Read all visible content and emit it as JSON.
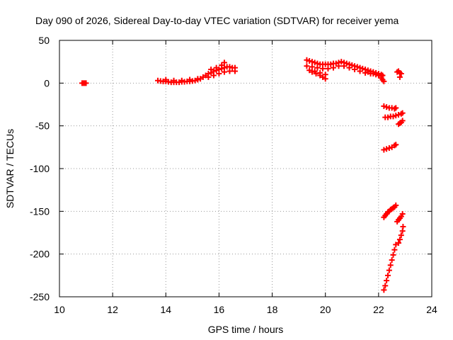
{
  "chart_data": {
    "type": "scatter",
    "title": "Day 090 of 2026, Sidereal Day-to-day VTEC variation (SDTVAR) for receiver yema",
    "xlabel": "GPS time / hours",
    "ylabel": "SDTVAR / TECUs",
    "xlim": [
      10,
      24
    ],
    "ylim": [
      -250,
      50
    ],
    "xticks": [
      "10",
      "12",
      "14",
      "16",
      "18",
      "20",
      "22",
      "24"
    ],
    "yticks": [
      "50",
      "0",
      "-50",
      "-100",
      "-150",
      "-200",
      "-250"
    ],
    "grid": true,
    "legend": "none",
    "marker": "plus",
    "marker_color": "#ff0000",
    "series": [
      {
        "points": [
          [
            10.85,
            0
          ],
          [
            10.9,
            0
          ],
          [
            10.95,
            0
          ],
          [
            11.0,
            0
          ],
          [
            13.7,
            3
          ],
          [
            13.8,
            2.5
          ],
          [
            13.9,
            2
          ],
          [
            14.0,
            2
          ],
          [
            14.1,
            1.5
          ],
          [
            14.2,
            1
          ],
          [
            14.3,
            1
          ],
          [
            14.4,
            1
          ],
          [
            14.5,
            1
          ],
          [
            14.6,
            1.5
          ],
          [
            14.7,
            1.5
          ],
          [
            14.8,
            2
          ],
          [
            14.9,
            2
          ],
          [
            15.0,
            2.5
          ],
          [
            15.1,
            3
          ],
          [
            15.2,
            4
          ],
          [
            15.3,
            5
          ],
          [
            15.4,
            7
          ],
          [
            14.0,
            4
          ],
          [
            14.3,
            3
          ],
          [
            14.6,
            3
          ],
          [
            14.9,
            4
          ],
          [
            15.2,
            5
          ],
          [
            15.5,
            9
          ],
          [
            15.6,
            11
          ],
          [
            15.7,
            12
          ],
          [
            15.8,
            14
          ],
          [
            15.9,
            15
          ],
          [
            16.0,
            16
          ],
          [
            16.1,
            17
          ],
          [
            16.2,
            18
          ],
          [
            16.3,
            19
          ],
          [
            16.4,
            19
          ],
          [
            16.5,
            18
          ],
          [
            16.6,
            18
          ],
          [
            15.6,
            7
          ],
          [
            15.8,
            9
          ],
          [
            16.0,
            11
          ],
          [
            16.2,
            13
          ],
          [
            16.4,
            14
          ],
          [
            16.6,
            14
          ],
          [
            15.7,
            16
          ],
          [
            15.9,
            18
          ],
          [
            16.1,
            21
          ],
          [
            16.2,
            24
          ],
          [
            19.3,
            27
          ],
          [
            19.4,
            26
          ],
          [
            19.5,
            25
          ],
          [
            19.6,
            24
          ],
          [
            19.7,
            23
          ],
          [
            19.8,
            22
          ],
          [
            19.9,
            22
          ],
          [
            20.0,
            22
          ],
          [
            20.1,
            22
          ],
          [
            20.2,
            22
          ],
          [
            20.3,
            23
          ],
          [
            20.4,
            23
          ],
          [
            20.5,
            24
          ],
          [
            20.6,
            25
          ],
          [
            20.7,
            24
          ],
          [
            20.8,
            23
          ],
          [
            20.9,
            22
          ],
          [
            21.0,
            21
          ],
          [
            21.1,
            20
          ],
          [
            21.2,
            19
          ],
          [
            21.3,
            18
          ],
          [
            21.4,
            17
          ],
          [
            21.5,
            16
          ],
          [
            21.6,
            15
          ],
          [
            21.7,
            14
          ],
          [
            21.8,
            13
          ],
          [
            21.9,
            12
          ],
          [
            22.0,
            11
          ],
          [
            22.1,
            10
          ],
          [
            22.15,
            9
          ],
          [
            19.3,
            20
          ],
          [
            19.5,
            19
          ],
          [
            19.7,
            18
          ],
          [
            19.9,
            17
          ],
          [
            20.1,
            17
          ],
          [
            20.3,
            18
          ],
          [
            20.5,
            20
          ],
          [
            20.7,
            20
          ],
          [
            20.9,
            18
          ],
          [
            21.1,
            16
          ],
          [
            21.3,
            14
          ],
          [
            21.5,
            12
          ],
          [
            21.7,
            11
          ],
          [
            21.9,
            10
          ],
          [
            22.1,
            8
          ],
          [
            19.4,
            15
          ],
          [
            19.6,
            14
          ],
          [
            19.8,
            12
          ],
          [
            20.0,
            10
          ],
          [
            19.5,
            13
          ],
          [
            19.65,
            11
          ],
          [
            19.8,
            9
          ],
          [
            19.9,
            7
          ],
          [
            20.0,
            5
          ],
          [
            21.6,
            13
          ],
          [
            21.8,
            11
          ],
          [
            22.0,
            9
          ],
          [
            22.1,
            6
          ],
          [
            22.15,
            4
          ],
          [
            22.2,
            2
          ],
          [
            22.7,
            13
          ],
          [
            22.75,
            14
          ],
          [
            22.8,
            12
          ],
          [
            22.85,
            11
          ],
          [
            22.8,
            7
          ],
          [
            22.2,
            -27
          ],
          [
            22.3,
            -28
          ],
          [
            22.4,
            -29
          ],
          [
            22.5,
            -29
          ],
          [
            22.6,
            -30
          ],
          [
            22.65,
            -29
          ],
          [
            22.25,
            -40
          ],
          [
            22.35,
            -40
          ],
          [
            22.45,
            -39
          ],
          [
            22.55,
            -39
          ],
          [
            22.65,
            -38
          ],
          [
            22.75,
            -37
          ],
          [
            22.85,
            -36
          ],
          [
            22.9,
            -35
          ],
          [
            22.75,
            -48
          ],
          [
            22.8,
            -47
          ],
          [
            22.85,
            -46
          ],
          [
            22.9,
            -44
          ],
          [
            22.2,
            -78
          ],
          [
            22.3,
            -77
          ],
          [
            22.4,
            -76
          ],
          [
            22.5,
            -75
          ],
          [
            22.6,
            -73
          ],
          [
            22.65,
            -72
          ],
          [
            22.2,
            -157
          ],
          [
            22.25,
            -155
          ],
          [
            22.3,
            -153
          ],
          [
            22.35,
            -151
          ],
          [
            22.4,
            -150
          ],
          [
            22.45,
            -148
          ],
          [
            22.5,
            -147
          ],
          [
            22.55,
            -146
          ],
          [
            22.6,
            -145
          ],
          [
            22.65,
            -143
          ],
          [
            22.7,
            -162
          ],
          [
            22.75,
            -160
          ],
          [
            22.8,
            -158
          ],
          [
            22.85,
            -156
          ],
          [
            22.9,
            -153
          ],
          [
            22.75,
            -187
          ],
          [
            22.8,
            -183
          ],
          [
            22.85,
            -178
          ],
          [
            22.9,
            -173
          ],
          [
            22.92,
            -168
          ],
          [
            22.2,
            -242
          ],
          [
            22.25,
            -237
          ],
          [
            22.3,
            -231
          ],
          [
            22.35,
            -225
          ],
          [
            22.4,
            -219
          ],
          [
            22.45,
            -213
          ],
          [
            22.5,
            -207
          ],
          [
            22.55,
            -201
          ],
          [
            22.6,
            -195
          ],
          [
            22.65,
            -189
          ]
        ]
      }
    ]
  }
}
